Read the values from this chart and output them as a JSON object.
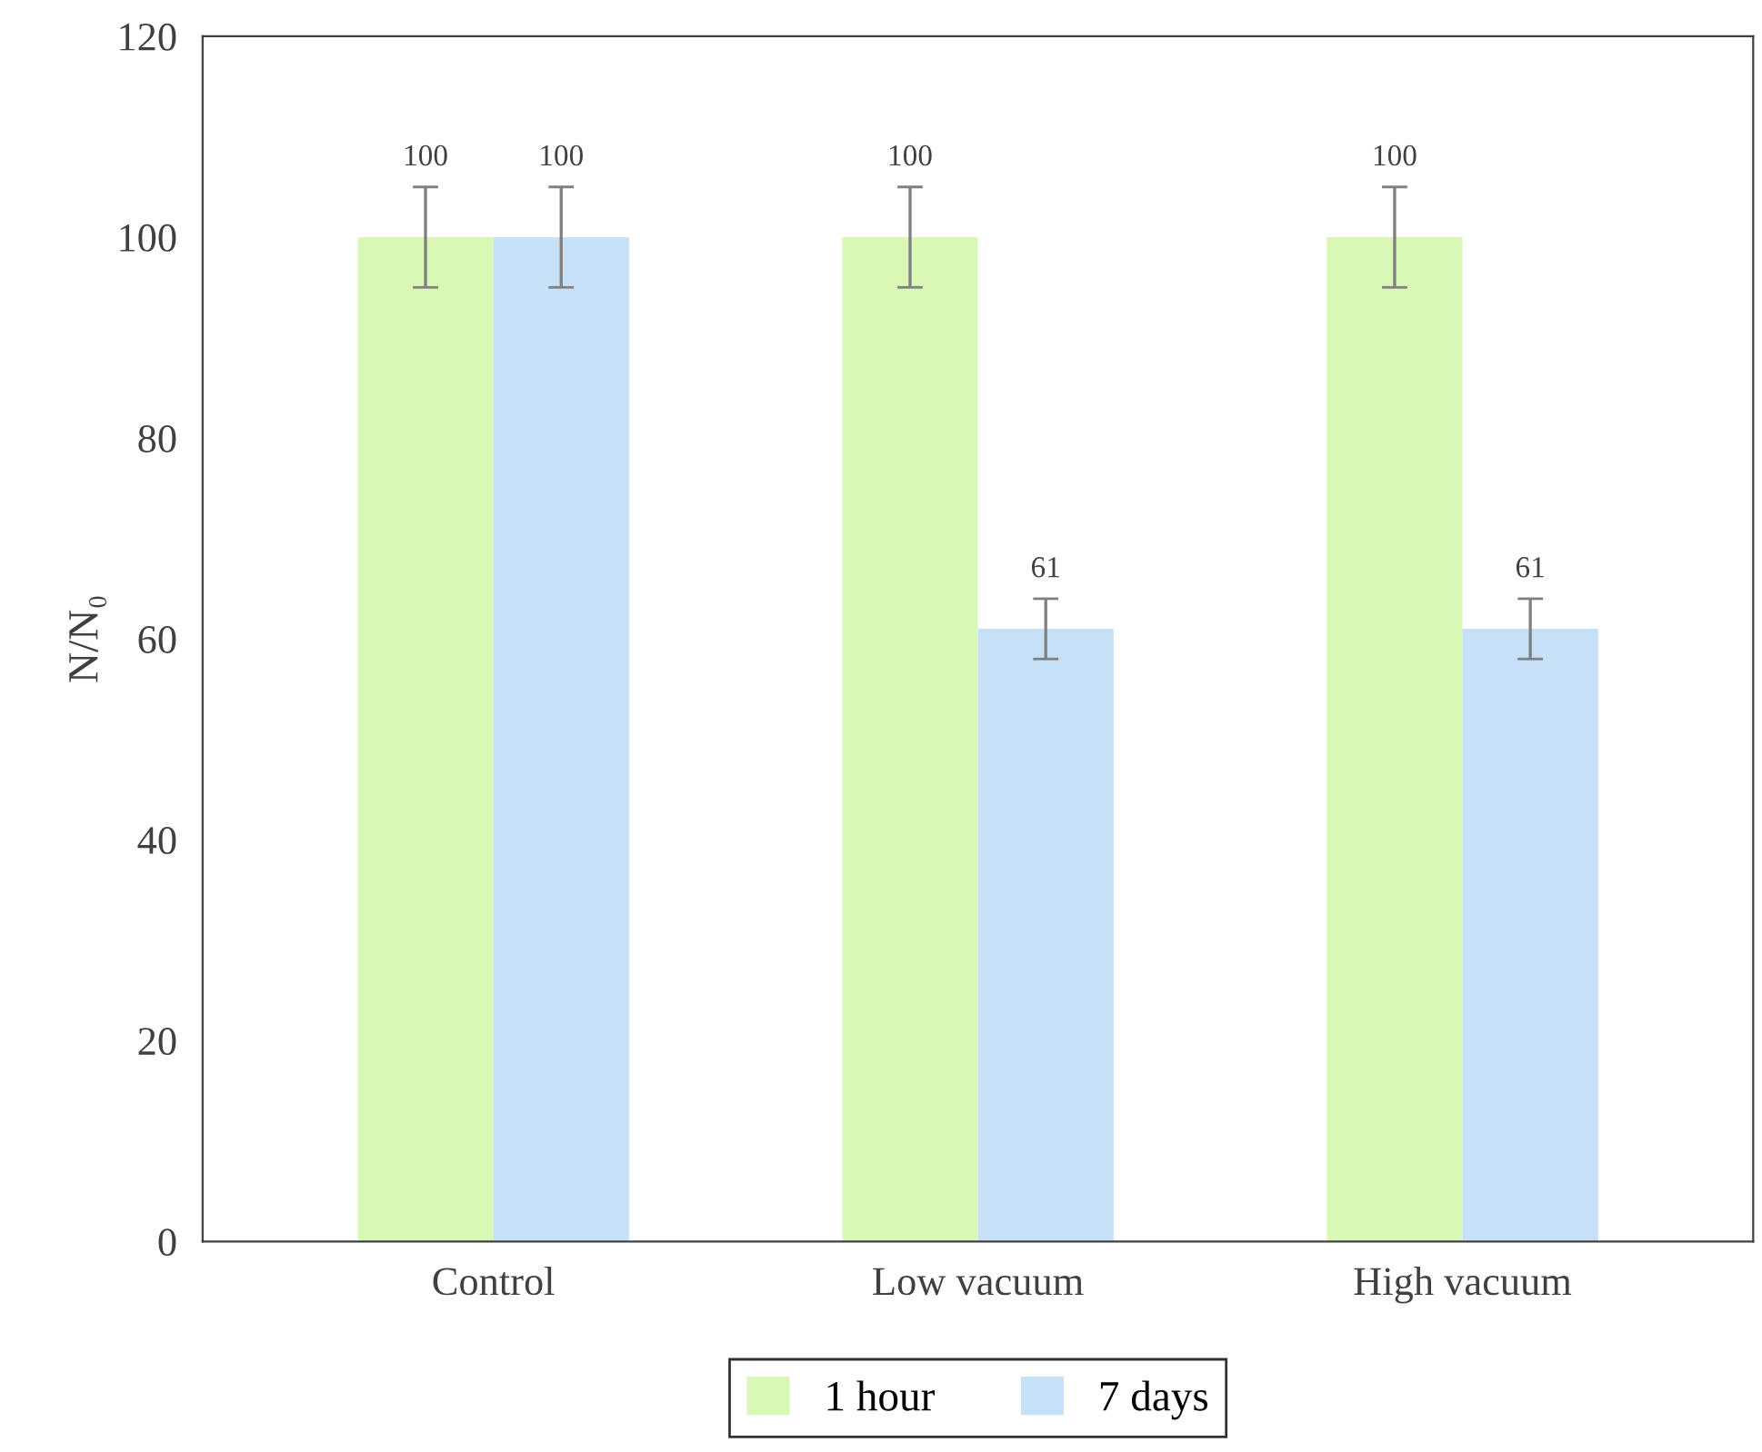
{
  "chart_data": {
    "type": "bar",
    "categories": [
      "Control",
      "Low vacuum",
      "High vacuum"
    ],
    "series": [
      {
        "name": "1 hour",
        "color": "#d9f7b5",
        "values": [
          100,
          100,
          100
        ],
        "errors": [
          5,
          5,
          5
        ]
      },
      {
        "name": "7 days",
        "color": "#c6e1f7",
        "values": [
          100,
          61,
          61
        ],
        "errors": [
          5,
          3,
          3
        ]
      }
    ],
    "ylabel": "N/N₀",
    "ylim": [
      0,
      120
    ],
    "yticks": [
      0,
      20,
      40,
      60,
      80,
      100,
      120
    ],
    "data_labels": true,
    "legend": "bottom",
    "grid": false
  }
}
